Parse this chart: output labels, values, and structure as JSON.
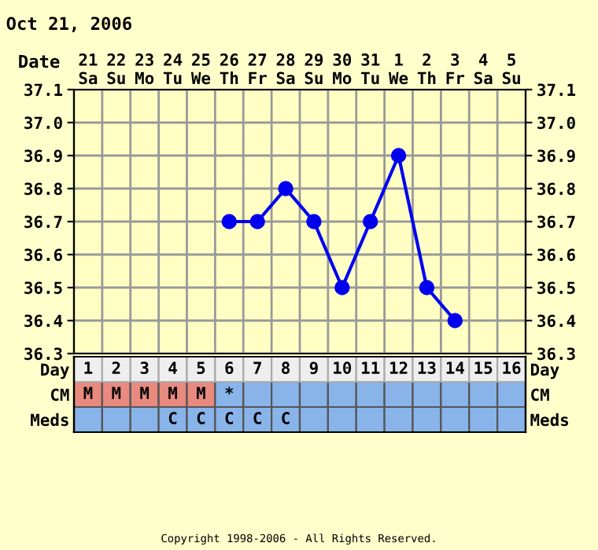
{
  "chart_data": [
    {
      "type": "line",
      "title": "Oct 21, 2006",
      "categories": [
        "21\nSa",
        "22\nSu",
        "23\nMo",
        "24\nTu",
        "25\nWe",
        "26\nTh",
        "27\nFr",
        "28\nSa",
        "29\nSu",
        "30\nMo",
        "31\nTu",
        "1\nWe",
        "2\nTh",
        "3\nFr",
        "4\nSa",
        "5\nSu"
      ],
      "series": [
        {
          "color": "#0000ee",
          "values": [
            null,
            null,
            null,
            null,
            null,
            36.7,
            36.7,
            36.8,
            36.7,
            36.5,
            36.7,
            36.9,
            36.5,
            36.4,
            null,
            null
          ]
        }
      ],
      "ylim": [
        36.3,
        37.1
      ],
      "yticks": [
        36.3,
        36.4,
        36.5,
        36.6,
        36.7,
        36.8,
        36.9,
        {
          "value": 37,
          "label": "37.0"
        },
        37.1
      ],
      "y2lim": [
        36.3,
        37.1
      ],
      "y2ticks": [
        36.3,
        36.4,
        36.5,
        36.6,
        36.7,
        36.8,
        36.9,
        {
          "value": 37,
          "label": "37.0"
        },
        37.1
      ],
      "xlabel": "Date",
      "grid": true,
      "marker": "circle",
      "line_style": "solid",
      "annotations": [
        "Copyright 1998-2006 - All Rights Reserved."
      ]
    },
    {
      "type": "heatmap",
      "categories": [
        "1",
        "2",
        "3",
        "4",
        "5",
        "6",
        "7",
        "8",
        "9",
        "10",
        "11",
        "12",
        "13",
        "14",
        "15",
        "16"
      ],
      "y_categories": [
        "CM",
        "Meds"
      ],
      "y2_categories": [
        "CM",
        "Meds"
      ],
      "cells": [
        [
          null,
          null,
          null,
          null,
          null,
          null,
          null,
          null,
          null,
          null,
          null,
          null,
          null,
          null,
          null,
          null
        ],
        [
          null,
          null,
          null,
          null,
          null,
          null,
          null,
          null,
          null,
          null,
          null,
          null,
          null,
          null,
          null,
          null
        ]
      ],
      "colors": [
        [
          "#e88a80",
          "#e88a80",
          "#e88a80",
          "#e88a80",
          "#e88a80",
          "#88b4ea",
          "#88b4ea",
          "#88b4ea",
          "#88b4ea",
          "#88b4ea",
          "#88b4ea",
          "#88b4ea",
          "#88b4ea",
          "#88b4ea",
          "#88b4ea",
          "#88b4ea"
        ],
        [
          "#88b4ea",
          "#88b4ea",
          "#88b4ea",
          "#88b4ea",
          "#88b4ea",
          "#88b4ea",
          "#88b4ea",
          "#88b4ea",
          "#88b4ea",
          "#88b4ea",
          "#88b4ea",
          "#88b4ea",
          "#88b4ea",
          "#88b4ea",
          "#88b4ea",
          "#88b4ea"
        ]
      ],
      "cell_labels": [
        [
          "M",
          "M",
          "M",
          "M",
          "M",
          "*",
          null,
          null,
          null,
          null,
          null,
          null,
          null,
          null,
          null,
          null
        ],
        [
          null,
          null,
          null,
          "C",
          "C",
          "C",
          "C",
          "C",
          null,
          null,
          null,
          null,
          null,
          null,
          null,
          null
        ]
      ],
      "xlabel": "Day"
    }
  ]
}
